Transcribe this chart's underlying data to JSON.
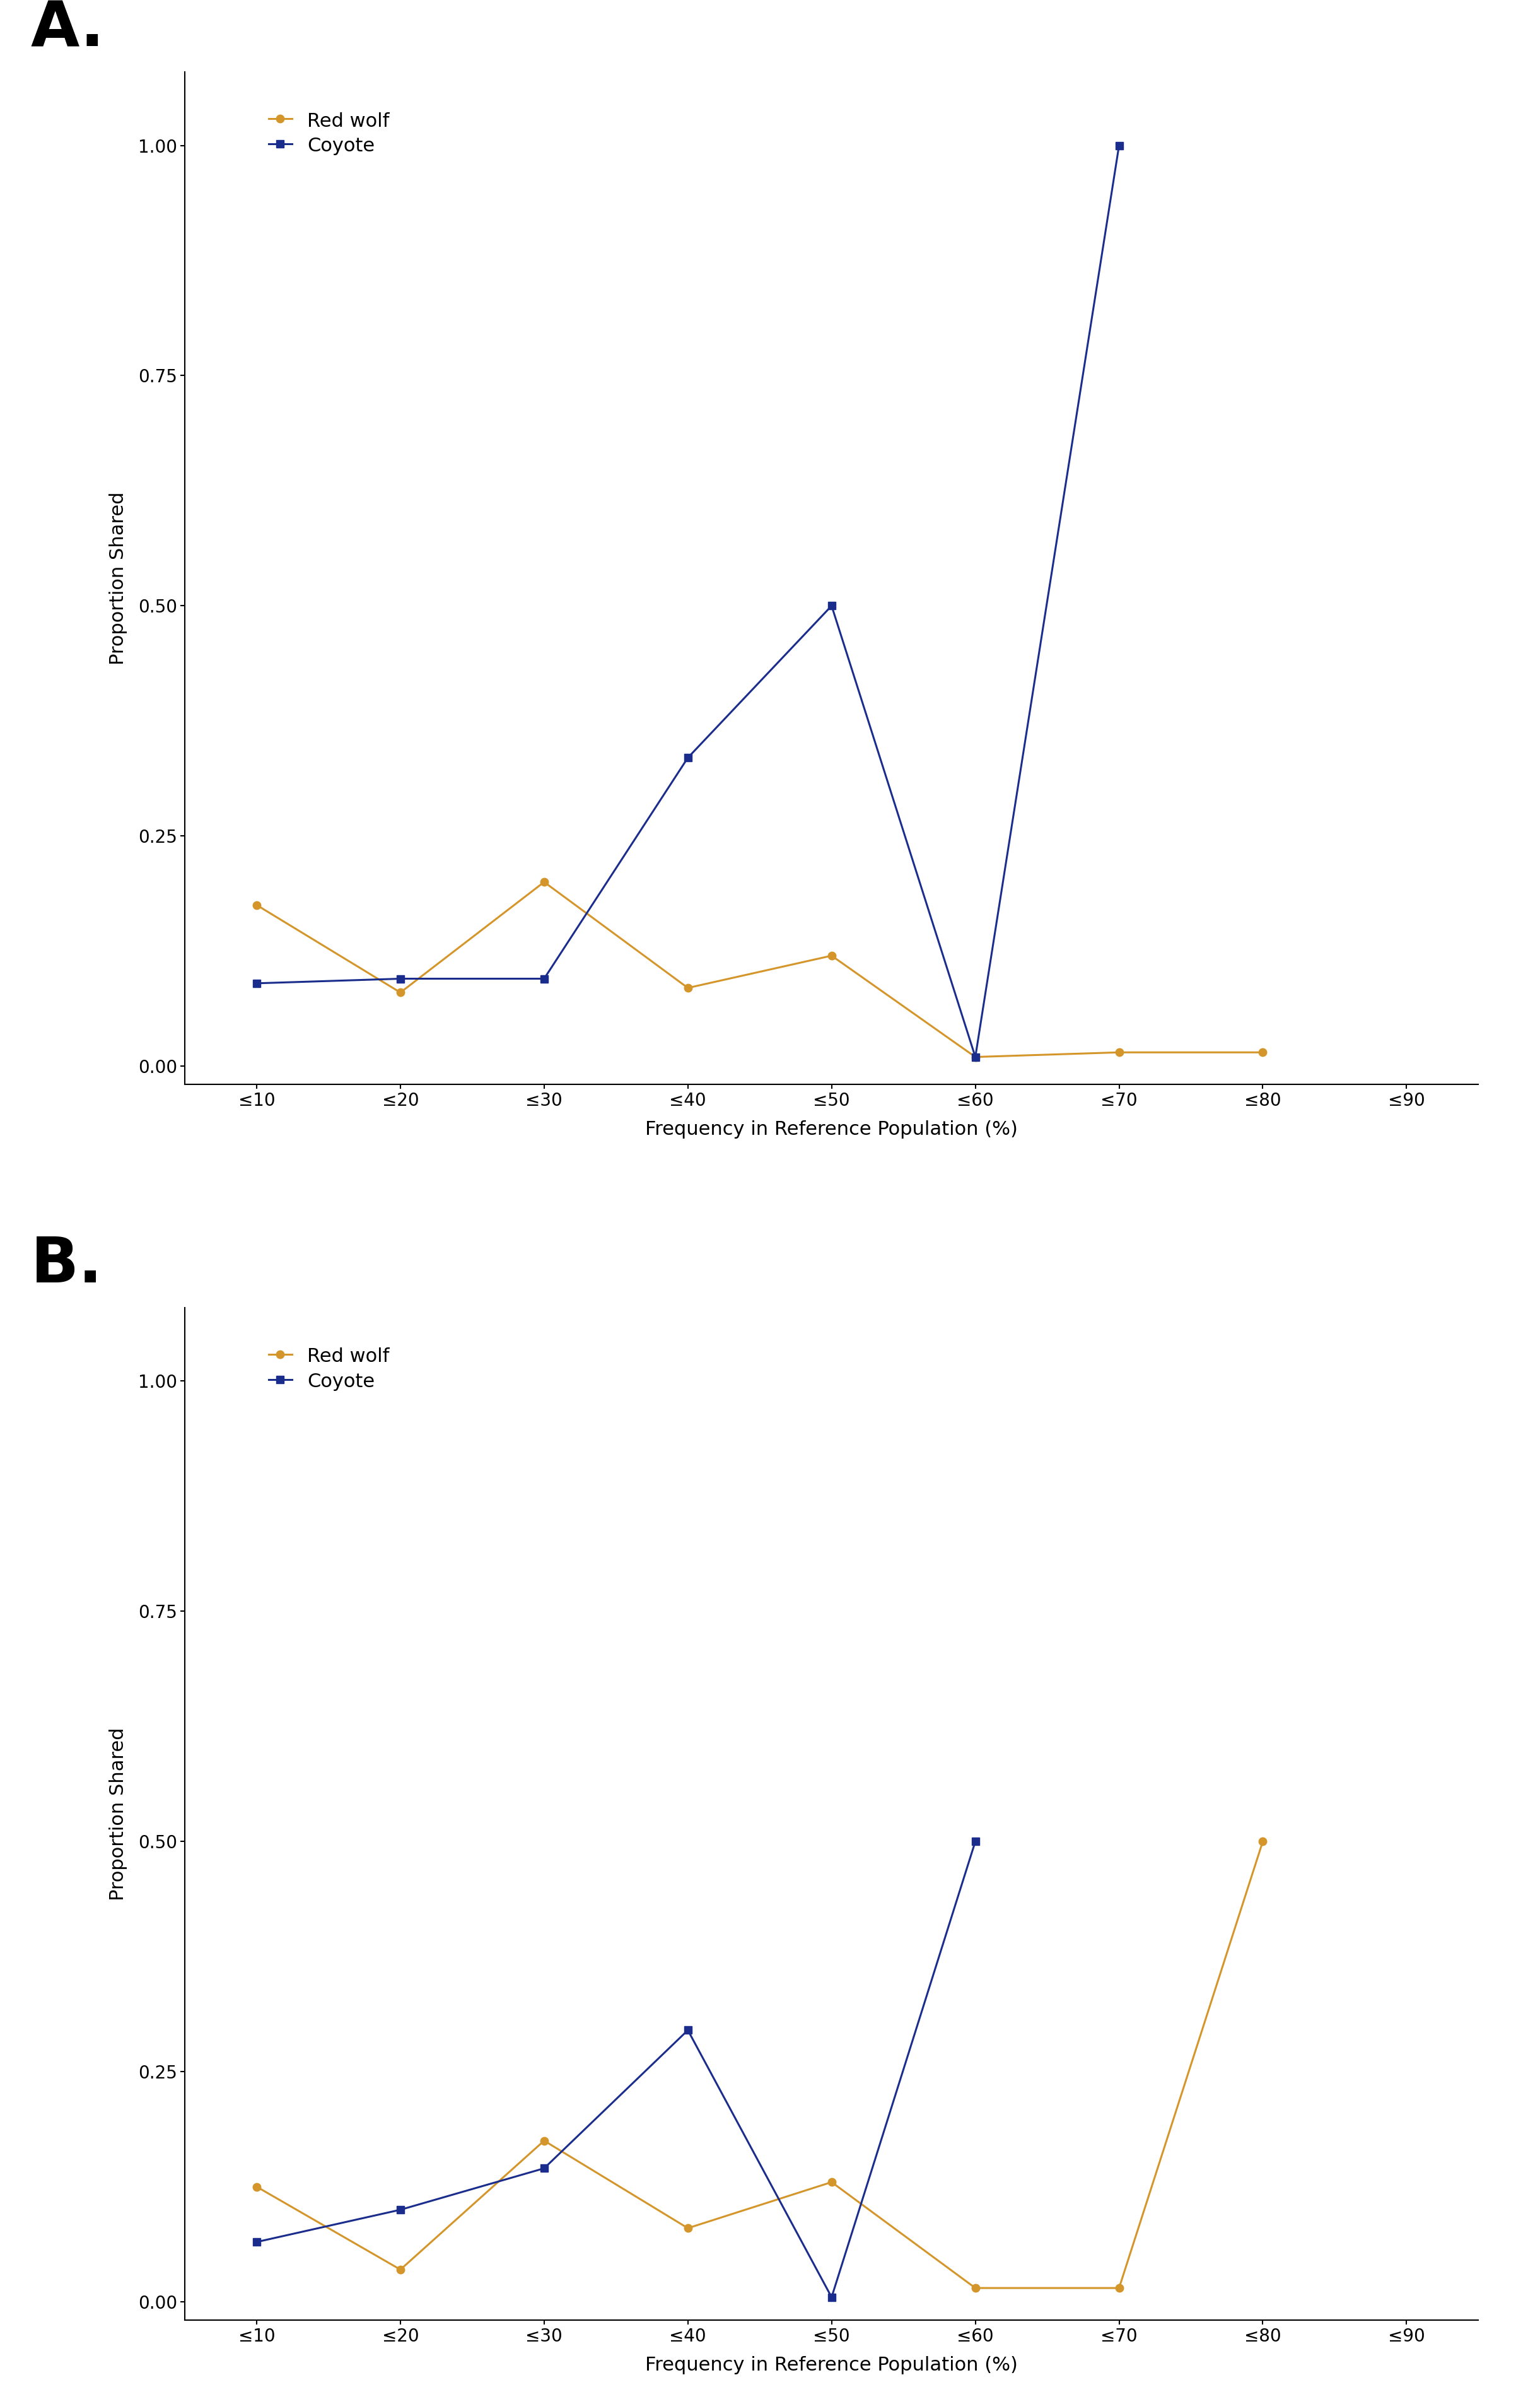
{
  "panel_A": {
    "label": "A.",
    "x_labels": [
      "≤10",
      "≤20",
      "≤30",
      "≤40",
      "≤50",
      "≤60",
      "≤70",
      "≤80",
      "≤90"
    ],
    "red_wolf": [
      0.175,
      0.08,
      0.2,
      0.085,
      0.12,
      0.01,
      0.015,
      0.015,
      null
    ],
    "coyote": [
      0.09,
      0.095,
      0.095,
      0.335,
      0.5,
      0.01,
      1.0,
      null,
      null
    ],
    "ylim": [
      -0.02,
      1.08
    ],
    "yticks": [
      0.0,
      0.25,
      0.5,
      0.75,
      1.0
    ],
    "ylabel": "Proportion Shared",
    "xlabel": "Frequency in Reference Population (%)"
  },
  "panel_B": {
    "label": "B.",
    "x_labels": [
      "≤10",
      "≤20",
      "≤30",
      "≤40",
      "≤50",
      "≤60",
      "≤70",
      "≤80",
      "≤90"
    ],
    "red_wolf": [
      0.125,
      0.035,
      0.175,
      0.08,
      0.13,
      0.015,
      0.015,
      0.5,
      null
    ],
    "coyote": [
      0.065,
      0.1,
      0.145,
      0.295,
      0.005,
      0.5,
      null,
      null,
      null
    ],
    "ylim": [
      -0.02,
      1.08
    ],
    "yticks": [
      0.0,
      0.25,
      0.5,
      0.75,
      1.0
    ],
    "ylabel": "Proportion Shared",
    "xlabel": "Frequency in Reference Population (%)"
  },
  "red_wolf_color": "#D4962A",
  "coyote_color": "#1B2D8C",
  "red_wolf_marker": "o",
  "coyote_marker": "s",
  "marker_size": 9,
  "line_width": 2.2,
  "axis_fontsize": 22,
  "tick_fontsize": 20,
  "legend_fontsize": 22,
  "panel_label_fontsize": 72
}
